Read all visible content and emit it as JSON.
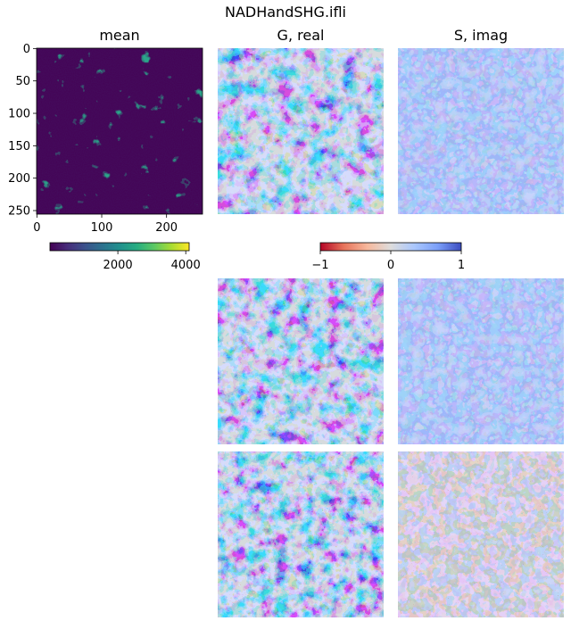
{
  "figure": {
    "suptitle": "NADHandSHG.ifli"
  },
  "chart_data": [
    {
      "type": "heatmap",
      "title": "mean",
      "xlabel": "",
      "ylabel": "",
      "image_size": [
        256,
        256
      ],
      "xlim": [
        0,
        255
      ],
      "ylim": [
        255,
        0
      ],
      "xticks": [
        0,
        100,
        200
      ],
      "yticks": [
        0,
        50,
        100,
        150,
        200,
        250
      ],
      "colormap": "viridis",
      "colorbar": {
        "range": [
          0,
          4100
        ],
        "ticks": [
          2000,
          4000
        ],
        "orientation": "horizontal"
      }
    },
    {
      "type": "heatmap",
      "title": "G, real",
      "harmonic_row": 1,
      "colormap": "coolwarm_r",
      "vlim": [
        -1,
        1
      ],
      "axes": "off"
    },
    {
      "type": "heatmap",
      "title": "S, imag",
      "harmonic_row": 1,
      "colormap": "coolwarm_r",
      "vlim": [
        -1,
        1
      ],
      "axes": "off"
    },
    {
      "type": "heatmap",
      "title": "",
      "harmonic_row": 2,
      "panel": "G",
      "colormap": "coolwarm_r",
      "vlim": [
        -1,
        1
      ],
      "axes": "off"
    },
    {
      "type": "heatmap",
      "title": "",
      "harmonic_row": 2,
      "panel": "S",
      "colormap": "coolwarm_r",
      "vlim": [
        -1,
        1
      ],
      "axes": "off"
    },
    {
      "type": "heatmap",
      "title": "",
      "harmonic_row": 3,
      "panel": "G",
      "colormap": "coolwarm_r",
      "vlim": [
        -1,
        1
      ],
      "axes": "off"
    },
    {
      "type": "heatmap",
      "title": "",
      "harmonic_row": 3,
      "panel": "S",
      "colormap": "coolwarm_r",
      "vlim": [
        -1,
        1
      ],
      "axes": "off"
    },
    {
      "type": "colorbar",
      "colormap": "coolwarm_r",
      "range": [
        -1,
        1
      ],
      "ticks": [
        -1,
        0,
        1
      ],
      "tick_labels": [
        "−1",
        "0",
        "1"
      ],
      "orientation": "horizontal"
    }
  ],
  "colors": {
    "viridis": [
      "#440154",
      "#472c7a",
      "#3b518b",
      "#2c718e",
      "#21908d",
      "#27ad81",
      "#5cc863",
      "#aadc32",
      "#fde725"
    ],
    "coolwarm_r": [
      "#b40426",
      "#e7745b",
      "#f7b89c",
      "#dddcdc",
      "#aac7fd",
      "#7b9ff9",
      "#3b4cc0"
    ]
  }
}
